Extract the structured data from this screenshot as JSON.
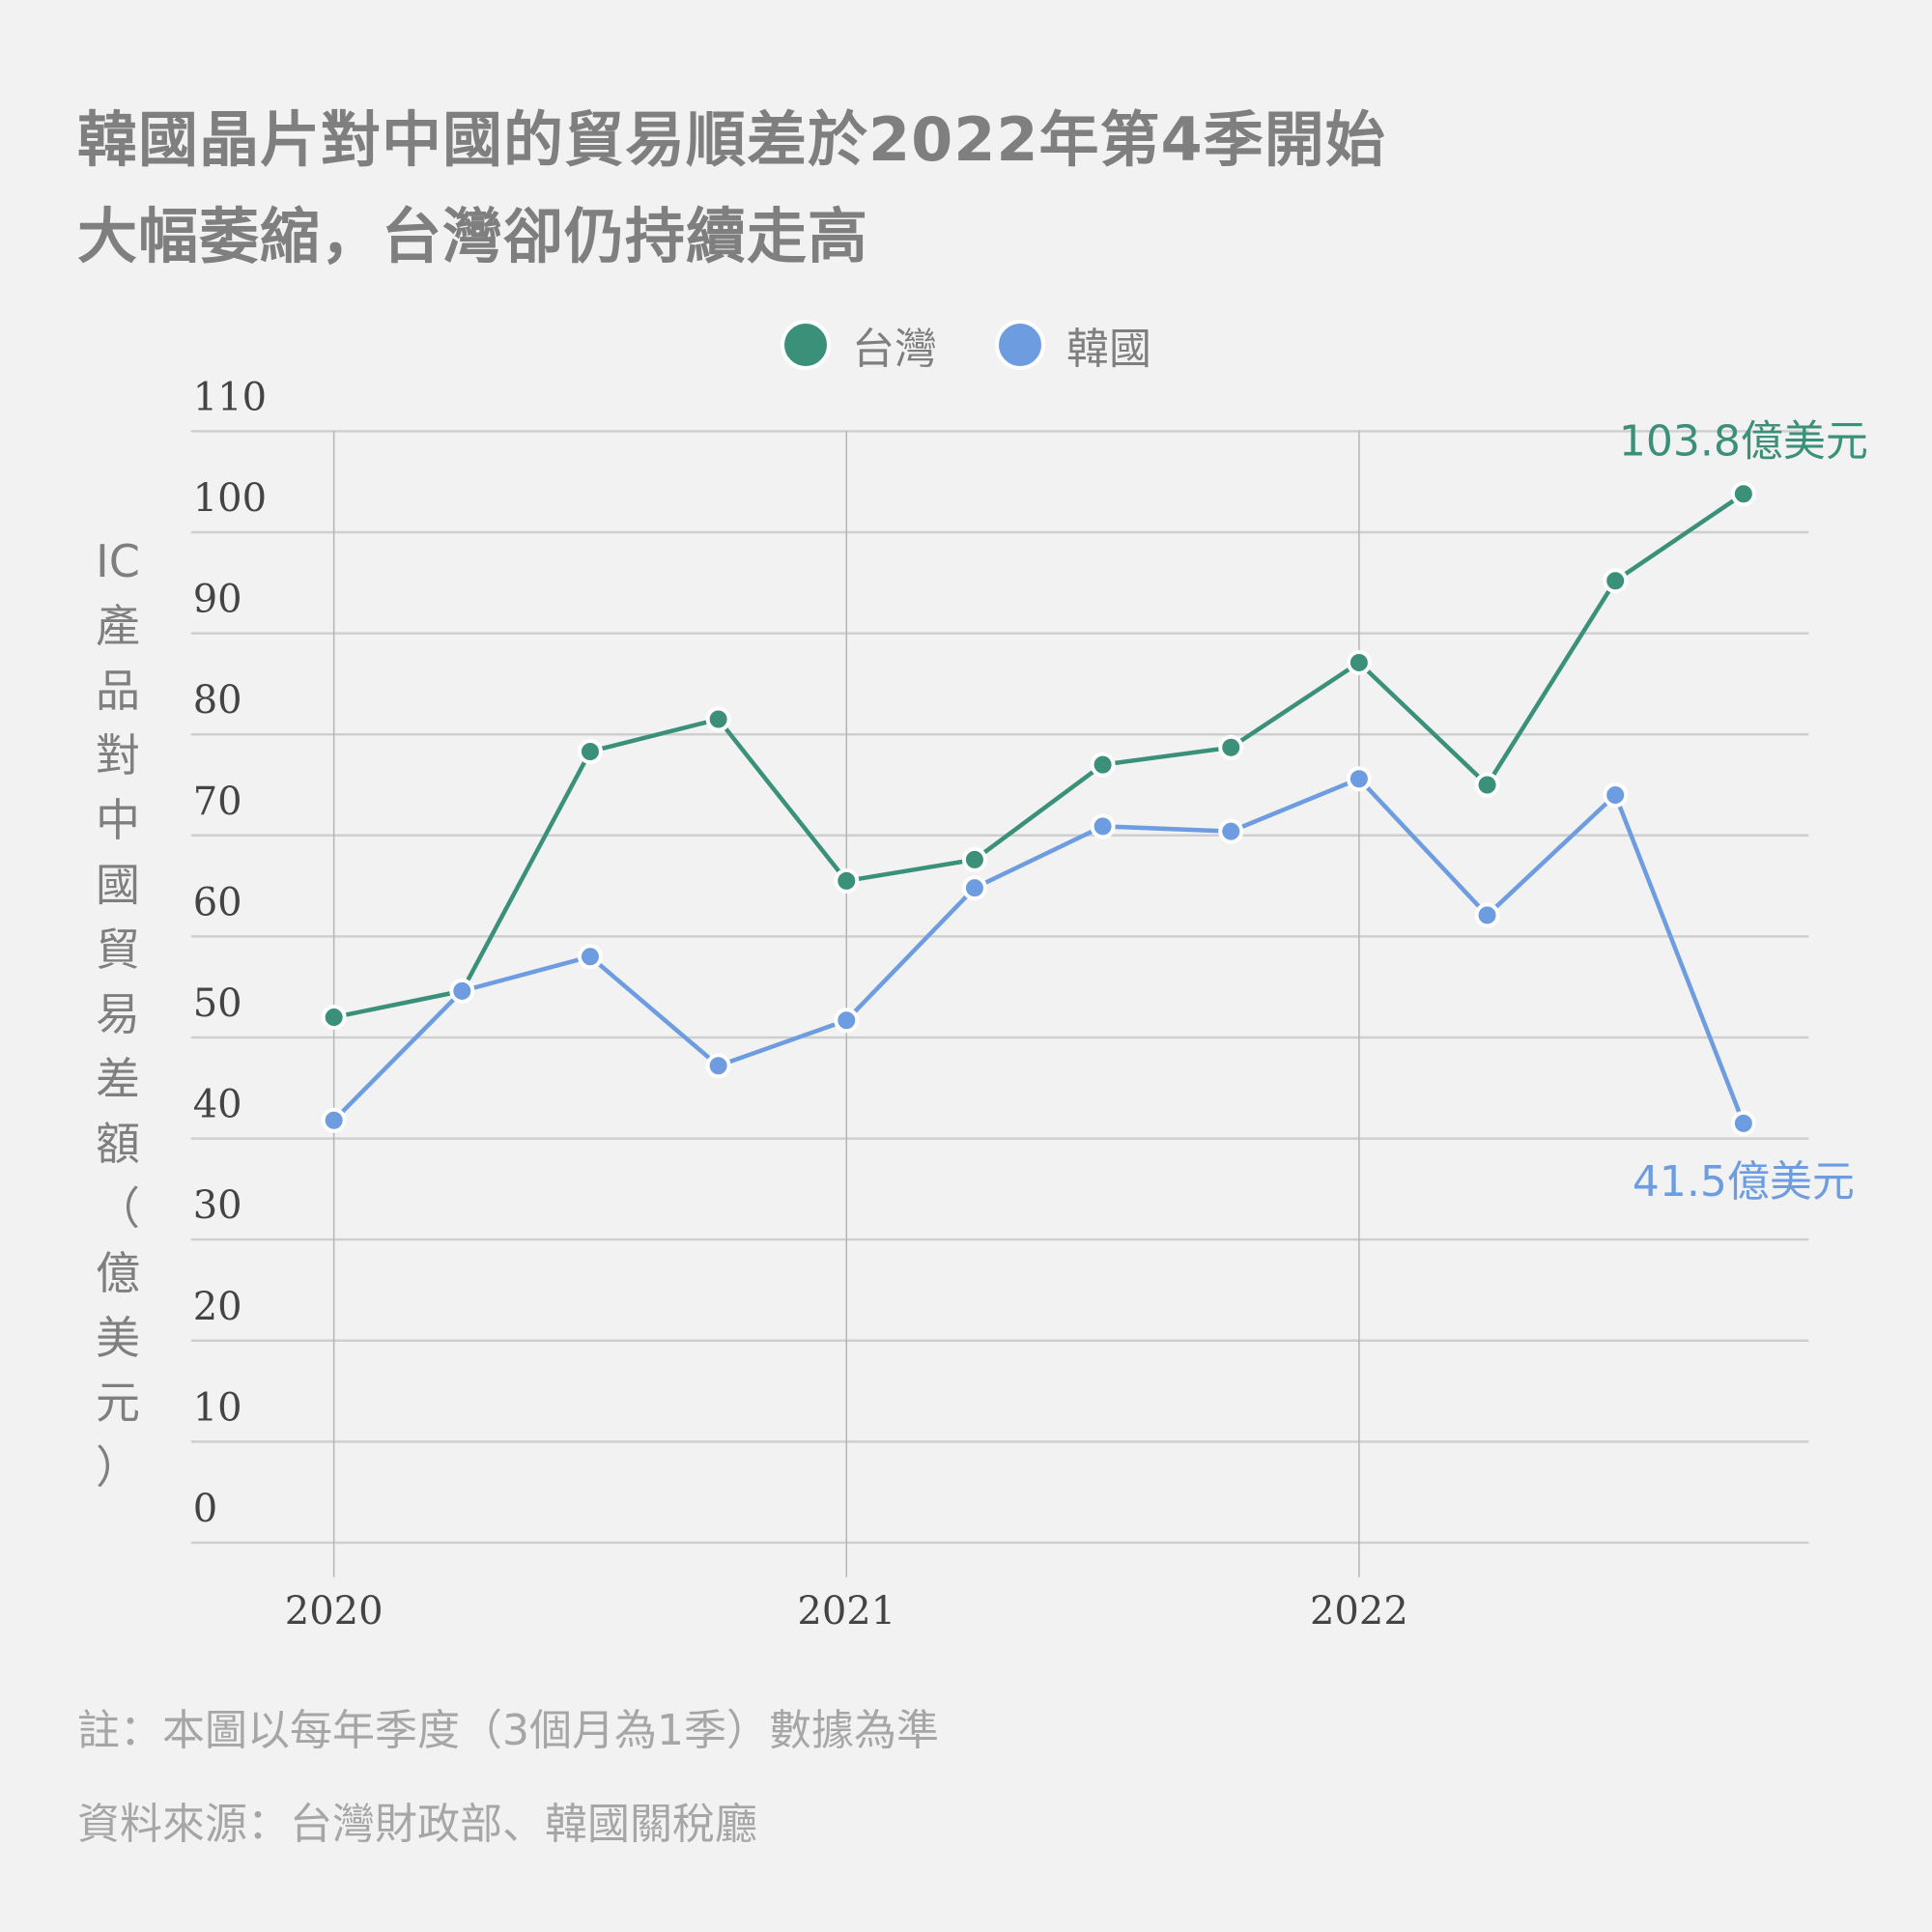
{
  "title": {
    "line1": "韓國晶片對中國的貿易順差於2022年第4季開始",
    "line2": "大幅萎縮，台灣卻仍持續走高"
  },
  "legend": [
    {
      "label": "台灣",
      "color": "#3a9079"
    },
    {
      "label": "韓國",
      "color": "#6d9de0"
    }
  ],
  "y_axis_label_chars": [
    "IC",
    "產",
    "品",
    "對",
    "中",
    "國",
    "貿",
    "易",
    "差",
    "額",
    "（",
    "億",
    "美",
    "元",
    "）"
  ],
  "annotations": {
    "taiwan_last": "103.8億美元",
    "korea_last": "41.5億美元"
  },
  "notes": {
    "note": "註：本圖以每年季度（3個月為1季）數據為準",
    "source": "資料來源：台灣財政部、韓國關稅廳"
  },
  "chart_data": {
    "type": "line",
    "title": "韓國晶片對中國的貿易順差於2022年第4季開始大幅萎縮，台灣卻仍持續走高",
    "xlabel": "",
    "ylabel": "IC產品對中國貿易差額（億美元）",
    "x": [
      "2020Q1",
      "2020Q2",
      "2020Q3",
      "2020Q4",
      "2021Q1",
      "2021Q2",
      "2021Q3",
      "2021Q4",
      "2022Q1",
      "2022Q2",
      "2022Q3",
      "2022Q4"
    ],
    "x_tick_labels": [
      "2020",
      "2021",
      "2022"
    ],
    "y_ticks": [
      0,
      10,
      20,
      30,
      40,
      50,
      60,
      70,
      80,
      90,
      100,
      110
    ],
    "ylim": [
      0,
      110
    ],
    "grid": true,
    "legend_position": "top-center",
    "series": [
      {
        "name": "台灣",
        "color": "#3a9079",
        "values": [
          52.0,
          54.6,
          78.3,
          81.5,
          65.5,
          67.6,
          77.0,
          78.7,
          87.1,
          75.0,
          95.2,
          103.8
        ]
      },
      {
        "name": "韓國",
        "color": "#6d9de0",
        "values": [
          41.8,
          54.6,
          58.0,
          47.2,
          51.7,
          64.8,
          70.9,
          70.4,
          75.6,
          62.1,
          74.0,
          41.5
        ]
      }
    ],
    "annotations": [
      {
        "series": "台灣",
        "x": "2022Q4",
        "text": "103.8億美元"
      },
      {
        "series": "韓國",
        "x": "2022Q4",
        "text": "41.5億美元"
      }
    ]
  }
}
